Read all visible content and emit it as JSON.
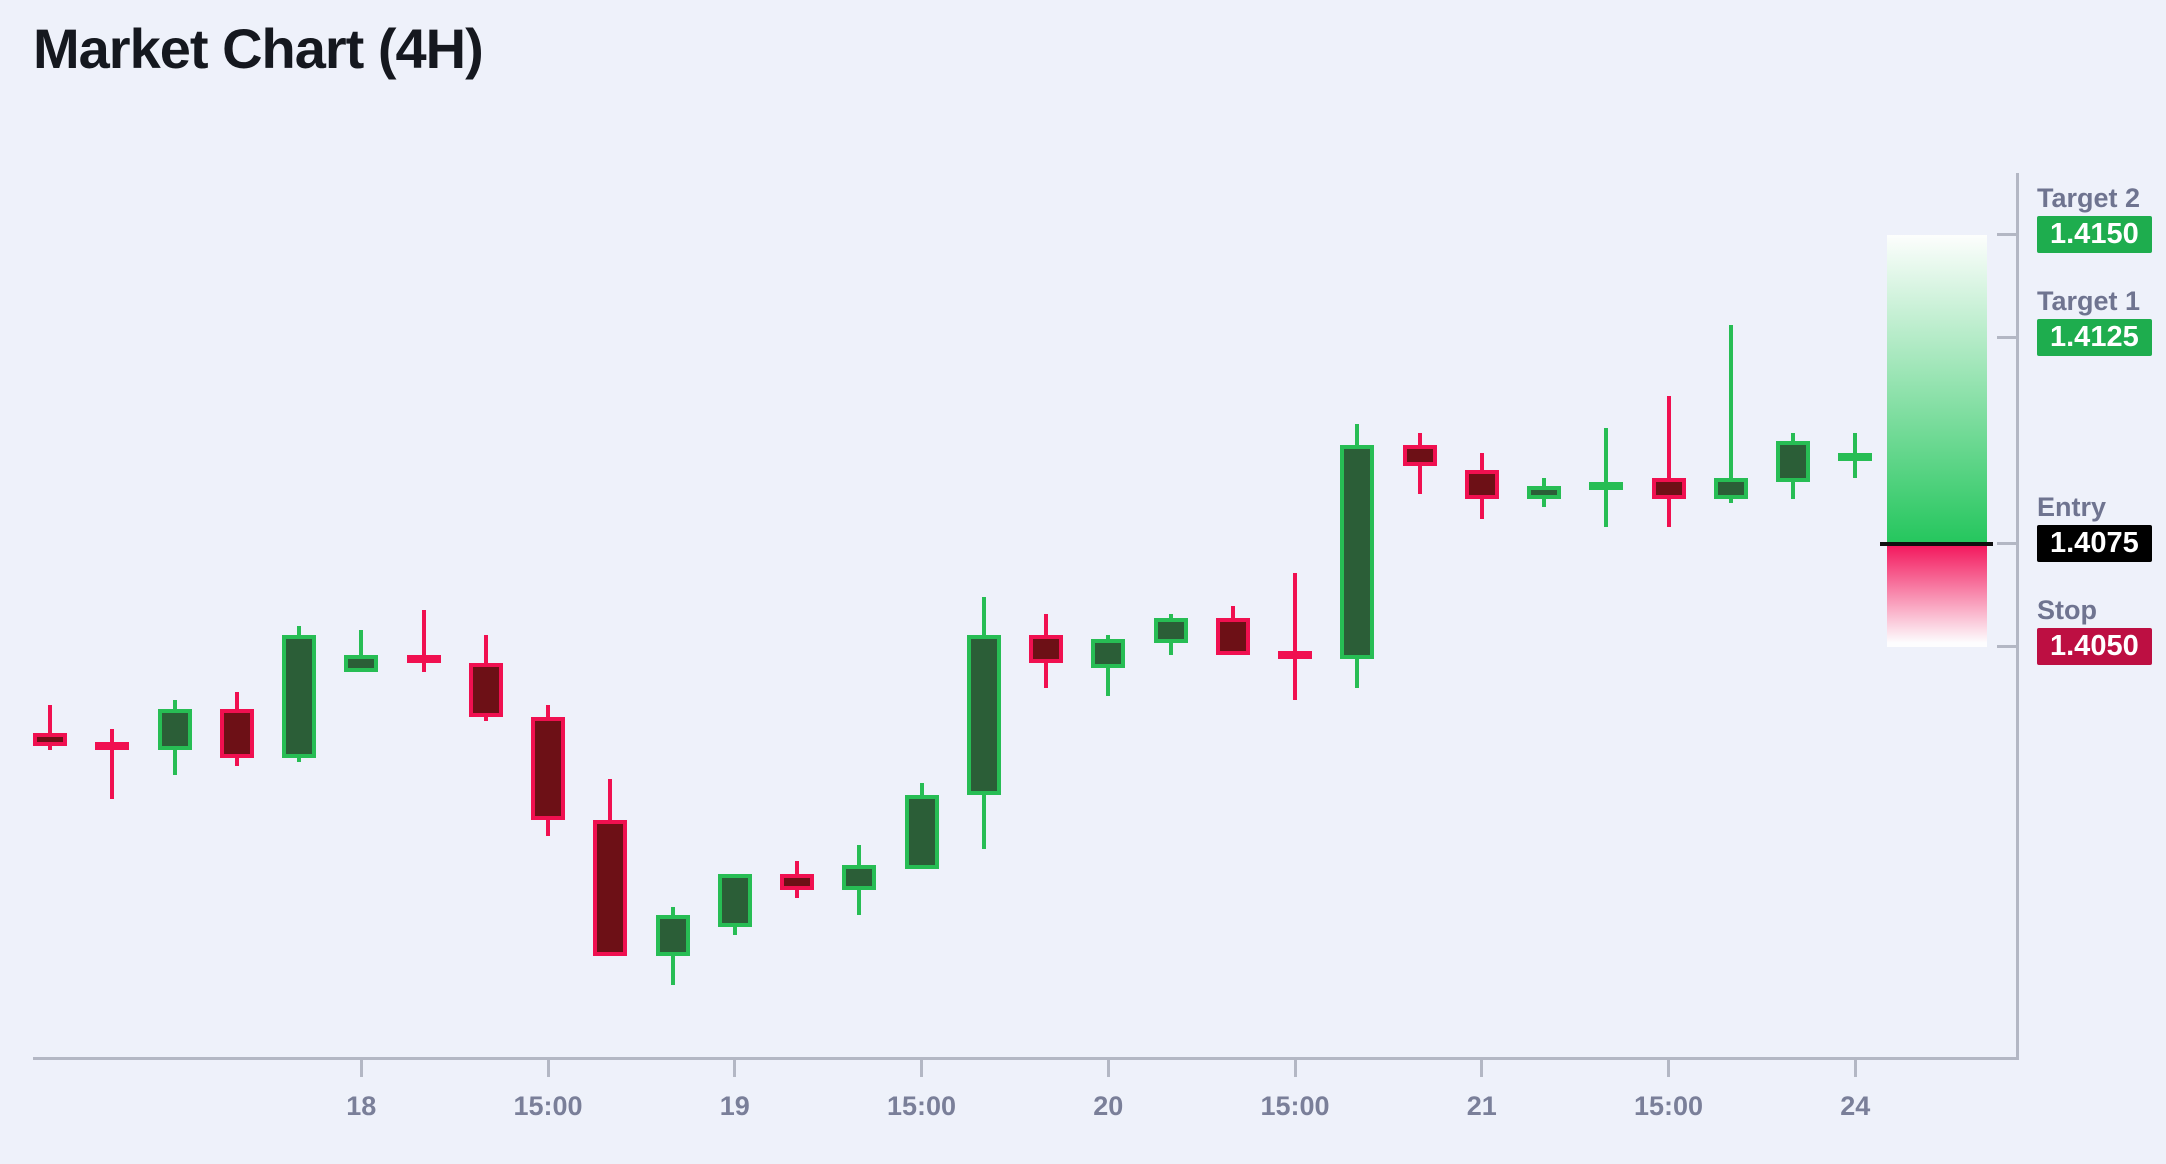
{
  "title": "Market Chart (4H)",
  "colors": {
    "background": "#eef1fa",
    "title_text": "#15181f",
    "axis": "#b3b7c4",
    "x_label_text": "#7a7f99",
    "level_label_text": "#6f7490",
    "candle_up_fill": "#2b5e37",
    "candle_up_border": "#27bd54",
    "candle_down_fill": "#6d1016",
    "candle_down_border": "#f01050",
    "zone_bullish": "#24c65d",
    "zone_bearish": "#f3155b",
    "entry_line": "#101010",
    "badge_target_bg": "#1ead4e",
    "badge_entry_bg": "#000000",
    "badge_stop_bg": "#bd0f42",
    "badge_text": "#ffffff"
  },
  "chart_data": {
    "type": "candlestick",
    "title": "Market Chart (4H)",
    "timeframe": "4H",
    "grid": false,
    "price_range": [
      1.395,
      1.4165
    ],
    "x_tick_labels": [
      "18",
      "15:00",
      "19",
      "15:00",
      "20",
      "15:00",
      "21",
      "15:00",
      "24"
    ],
    "x_ticks": [
      {
        "at": 5,
        "label": "18"
      },
      {
        "at": 8,
        "label": "15:00"
      },
      {
        "at": 11,
        "label": "19"
      },
      {
        "at": 14,
        "label": "15:00"
      },
      {
        "at": 17,
        "label": "20"
      },
      {
        "at": 20,
        "label": "15:00"
      },
      {
        "at": 23,
        "label": "21"
      },
      {
        "at": 26,
        "label": "15:00"
      },
      {
        "at": 29,
        "label": "24"
      }
    ],
    "candles": [
      {
        "o": 1.4029,
        "h": 1.4036,
        "l": 1.4025,
        "c": 1.4026
      },
      {
        "o": 1.4027,
        "h": 1.403,
        "l": 1.4013,
        "c": 1.4025
      },
      {
        "o": 1.4025,
        "h": 1.4037,
        "l": 1.4019,
        "c": 1.4035
      },
      {
        "o": 1.4035,
        "h": 1.4039,
        "l": 1.4021,
        "c": 1.4023
      },
      {
        "o": 1.4023,
        "h": 1.4055,
        "l": 1.4022,
        "c": 1.4053
      },
      {
        "o": 1.4044,
        "h": 1.4054,
        "l": 1.4044,
        "c": 1.4048
      },
      {
        "o": 1.4048,
        "h": 1.4059,
        "l": 1.4044,
        "c": 1.4046
      },
      {
        "o": 1.4046,
        "h": 1.4053,
        "l": 1.4032,
        "c": 1.4033
      },
      {
        "o": 1.4033,
        "h": 1.4036,
        "l": 1.4004,
        "c": 1.4008
      },
      {
        "o": 1.4008,
        "h": 1.4018,
        "l": 1.3975,
        "c": 1.3975
      },
      {
        "o": 1.3975,
        "h": 1.3987,
        "l": 1.3968,
        "c": 1.3985
      },
      {
        "o": 1.3982,
        "h": 1.3995,
        "l": 1.398,
        "c": 1.3995
      },
      {
        "o": 1.3995,
        "h": 1.3998,
        "l": 1.3989,
        "c": 1.3991
      },
      {
        "o": 1.3991,
        "h": 1.4002,
        "l": 1.3985,
        "c": 1.3997
      },
      {
        "o": 1.3996,
        "h": 1.4017,
        "l": 1.3996,
        "c": 1.4014
      },
      {
        "o": 1.4014,
        "h": 1.4062,
        "l": 1.4001,
        "c": 1.4053
      },
      {
        "o": 1.4053,
        "h": 1.4058,
        "l": 1.404,
        "c": 1.4046
      },
      {
        "o": 1.4045,
        "h": 1.4053,
        "l": 1.4038,
        "c": 1.4052
      },
      {
        "o": 1.4051,
        "h": 1.4058,
        "l": 1.4048,
        "c": 1.4057
      },
      {
        "o": 1.4057,
        "h": 1.406,
        "l": 1.4048,
        "c": 1.4048
      },
      {
        "o": 1.4049,
        "h": 1.4068,
        "l": 1.4037,
        "c": 1.4048
      },
      {
        "o": 1.4047,
        "h": 1.4104,
        "l": 1.404,
        "c": 1.4099
      },
      {
        "o": 1.4099,
        "h": 1.4102,
        "l": 1.4087,
        "c": 1.4094
      },
      {
        "o": 1.4093,
        "h": 1.4097,
        "l": 1.4081,
        "c": 1.4086
      },
      {
        "o": 1.4086,
        "h": 1.4091,
        "l": 1.4084,
        "c": 1.4089
      },
      {
        "o": 1.4089,
        "h": 1.4103,
        "l": 1.4079,
        "c": 1.409
      },
      {
        "o": 1.4091,
        "h": 1.4111,
        "l": 1.4079,
        "c": 1.4086
      },
      {
        "o": 1.4086,
        "h": 1.4128,
        "l": 1.4085,
        "c": 1.4091
      },
      {
        "o": 1.409,
        "h": 1.4102,
        "l": 1.4086,
        "c": 1.41
      },
      {
        "o": 1.4096,
        "h": 1.4102,
        "l": 1.4091,
        "c": 1.4097
      }
    ],
    "levels": [
      {
        "label": "Target 2",
        "display": "1.4150",
        "value": 1.415,
        "kind": "target"
      },
      {
        "label": "Target 1",
        "display": "1.4125",
        "value": 1.4125,
        "kind": "target"
      },
      {
        "label": "Entry",
        "display": "1.4075",
        "value": 1.4075,
        "kind": "entry"
      },
      {
        "label": "Stop",
        "display": "1.4050",
        "value": 1.405,
        "kind": "stop"
      }
    ],
    "zones": [
      {
        "from": 1.415,
        "to": 1.4075,
        "kind": "bullish"
      },
      {
        "from": 1.4075,
        "to": 1.405,
        "kind": "bearish"
      }
    ],
    "legend_position": "none"
  }
}
